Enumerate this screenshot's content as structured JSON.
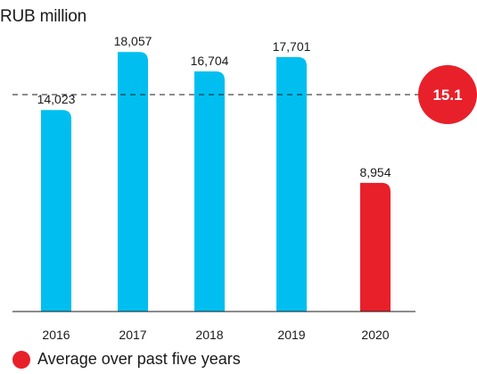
{
  "chart_data": {
    "type": "bar",
    "unit_label": "RUB million",
    "categories": [
      "2016",
      "2017",
      "2018",
      "2019",
      "2020"
    ],
    "values": [
      14023,
      18057,
      16704,
      17701,
      8954
    ],
    "value_labels": [
      "14,023",
      "18,057",
      "16,704",
      "17,701",
      "8,954"
    ],
    "bar_colors": [
      "#00bff0",
      "#00bff0",
      "#00bff0",
      "#00bff0",
      "#e8202a"
    ],
    "ylim": [
      0,
      19500
    ],
    "average": {
      "value": 15088,
      "badge_label": "15.1",
      "legend_label": "Average over past five years",
      "color": "#e8202a"
    }
  }
}
